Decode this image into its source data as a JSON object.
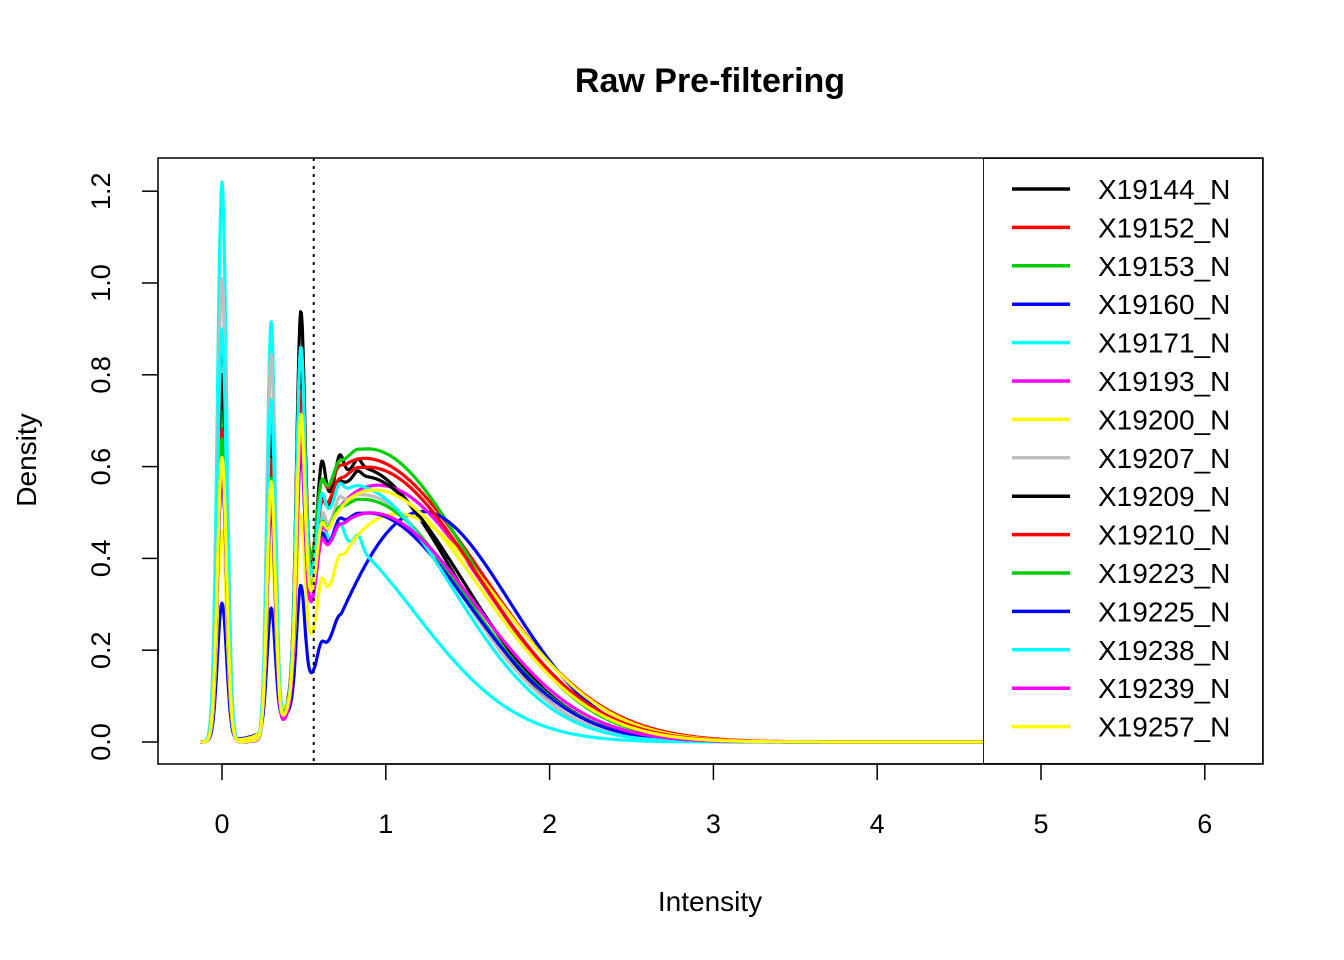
{
  "chart_data": {
    "type": "line",
    "title": "Raw Pre-filtering",
    "xlabel": "Intensity",
    "ylabel": "Density",
    "xlim": [
      -0.4,
      6.35
    ],
    "ylim": [
      -0.05,
      1.27
    ],
    "xticks": [
      0,
      1,
      2,
      3,
      4,
      5,
      6
    ],
    "xtick_labels": [
      "0",
      "1",
      "2",
      "3",
      "4",
      "5",
      "6"
    ],
    "yticks": [
      0.0,
      0.2,
      0.4,
      0.6,
      0.8,
      1.0,
      1.2
    ],
    "ytick_labels": [
      "0.0",
      "0.2",
      "0.4",
      "0.6",
      "0.8",
      "1.0",
      "1.2"
    ],
    "grid": false,
    "legend_position": "right",
    "threshold_line": {
      "x": 0.56,
      "style": "dotted"
    },
    "series": [
      {
        "name": "X19144_N",
        "color": "#000000",
        "peaks": [
          0.89,
          0.68,
          0.77,
          0.7,
          0.66,
          0.63
        ],
        "main_mu": 0.82,
        "main_sigma": 0.6,
        "main_amp": 0.6,
        "rise": 0.95
      },
      {
        "name": "X19152_N",
        "color": "#FF0000",
        "peaks": [
          0.74,
          0.67,
          0.68,
          0.62,
          0.61,
          0.6
        ],
        "main_mu": 0.85,
        "main_sigma": 0.72,
        "main_amp": 0.62,
        "rise": 0.95
      },
      {
        "name": "X19153_N",
        "color": "#00CD00",
        "peaks": [
          0.72,
          0.66,
          0.66,
          0.62,
          0.62,
          0.64
        ],
        "main_mu": 0.88,
        "main_sigma": 0.65,
        "main_amp": 0.64,
        "rise": 0.95
      },
      {
        "name": "X19160_N",
        "color": "#0000FF",
        "peaks": [
          0.3,
          0.26,
          0.28,
          0.24,
          0.28,
          0.32
        ],
        "main_mu": 1.2,
        "main_sigma": 0.55,
        "main_amp": 0.51,
        "rise": 0.35
      },
      {
        "name": "X19171_N",
        "color": "#00FFFF",
        "peaks": [
          1.22,
          0.9,
          0.7,
          0.55,
          0.5,
          0.47
        ],
        "main_mu": 0.55,
        "main_sigma": 0.62,
        "main_amp": 0.47,
        "rise": 1.0
      },
      {
        "name": "X19193_N",
        "color": "#FF00FF",
        "peaks": [
          0.66,
          0.54,
          0.56,
          0.5,
          0.5,
          0.5
        ],
        "main_mu": 0.95,
        "main_sigma": 0.65,
        "main_amp": 0.56,
        "rise": 0.95
      },
      {
        "name": "X19200_N",
        "color": "#FFFF00",
        "peaks": [
          0.46,
          0.4,
          0.38,
          0.4,
          0.42,
          0.44
        ],
        "main_mu": 1.05,
        "main_sigma": 0.65,
        "main_amp": 0.5,
        "rise": 0.55
      },
      {
        "name": "X19207_N",
        "color": "#BEBEBE",
        "peaks": [
          1.01,
          0.83,
          0.68,
          0.55,
          0.55,
          0.54
        ],
        "main_mu": 0.85,
        "main_sigma": 0.6,
        "main_amp": 0.54,
        "rise": 0.95
      },
      {
        "name": "X19209_N",
        "color": "#000000",
        "peaks": [
          0.8,
          0.65,
          0.66,
          0.58,
          0.58,
          0.6
        ],
        "main_mu": 0.85,
        "main_sigma": 0.62,
        "main_amp": 0.58,
        "rise": 0.95
      },
      {
        "name": "X19210_N",
        "color": "#FF0000",
        "peaks": [
          0.68,
          0.6,
          0.6,
          0.56,
          0.58,
          0.6
        ],
        "main_mu": 0.88,
        "main_sigma": 0.68,
        "main_amp": 0.6,
        "rise": 0.95
      },
      {
        "name": "X19223_N",
        "color": "#00CD00",
        "peaks": [
          0.66,
          0.56,
          0.56,
          0.52,
          0.52,
          0.53
        ],
        "main_mu": 0.85,
        "main_sigma": 0.63,
        "main_amp": 0.53,
        "rise": 0.95
      },
      {
        "name": "X19225_N",
        "color": "#0000FF",
        "peaks": [
          0.58,
          0.5,
          0.5,
          0.5,
          0.5,
          0.5
        ],
        "main_mu": 0.88,
        "main_sigma": 0.62,
        "main_amp": 0.5,
        "rise": 0.95
      },
      {
        "name": "X19238_N",
        "color": "#00FFFF",
        "peaks": [
          0.9,
          0.73,
          0.7,
          0.6,
          0.58,
          0.56
        ],
        "main_mu": 0.8,
        "main_sigma": 0.6,
        "main_amp": 0.56,
        "rise": 0.95
      },
      {
        "name": "X19239_N",
        "color": "#FF00FF",
        "peaks": [
          0.6,
          0.52,
          0.52,
          0.48,
          0.48,
          0.49
        ],
        "main_mu": 0.9,
        "main_sigma": 0.64,
        "main_amp": 0.5,
        "rise": 0.95
      },
      {
        "name": "X19257_N",
        "color": "#FFFF00",
        "peaks": [
          0.62,
          0.55,
          0.57,
          0.52,
          0.5,
          0.52
        ],
        "main_mu": 0.92,
        "main_sigma": 0.66,
        "main_amp": 0.55,
        "rise": 0.9
      }
    ]
  }
}
